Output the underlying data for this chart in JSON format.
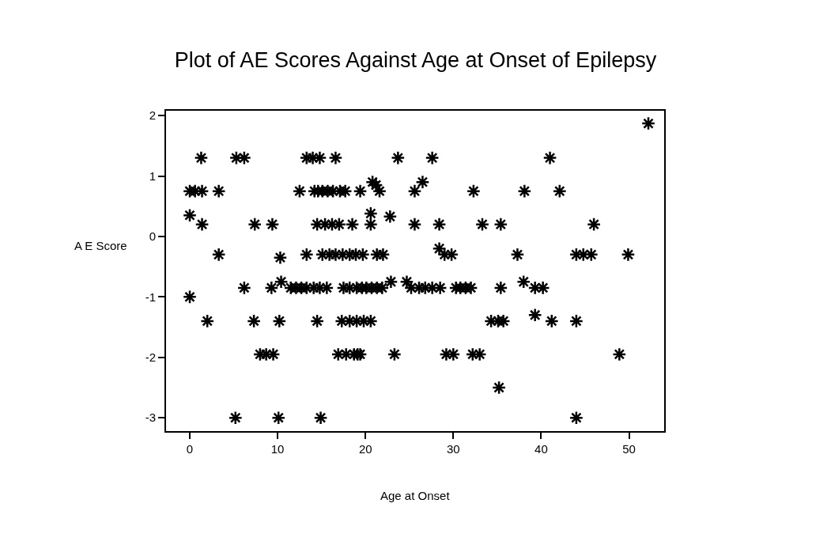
{
  "chart_data": {
    "type": "scatter",
    "title": "Plot of AE Scores Against Age at Onset of Epilepsy",
    "xlabel": "Age at Onset",
    "ylabel": "A E Score",
    "x": [
      1.3,
      5.3,
      6.2,
      13.3,
      14.0,
      14.8,
      16.6,
      23.7,
      27.6,
      41.0,
      52.2,
      20.8,
      26.5,
      21.2,
      0.0,
      0.6,
      1.4,
      3.3,
      12.5,
      14.2,
      14.6,
      15.1,
      15.7,
      16.3,
      17.1,
      17.7,
      19.4,
      21.6,
      25.6,
      32.3,
      38.1,
      42.1,
      0.0,
      20.6,
      22.8,
      1.4,
      7.4,
      9.4,
      14.5,
      15.4,
      16.2,
      17.0,
      18.5,
      20.6,
      25.6,
      28.4,
      33.3,
      35.4,
      46.0,
      28.4,
      3.3,
      13.3,
      15.1,
      15.9,
      16.6,
      17.4,
      18.2,
      18.9,
      19.7,
      21.3,
      22.0,
      29.0,
      29.8,
      37.3,
      44.0,
      44.8,
      45.7,
      49.9,
      10.3,
      10.4,
      22.9,
      24.7,
      38.0,
      6.2,
      9.3,
      11.5,
      12.1,
      12.7,
      13.3,
      14.1,
      14.8,
      15.6,
      17.5,
      18.2,
      19.0,
      19.6,
      20.1,
      20.7,
      21.3,
      21.9,
      25.2,
      26.1,
      26.8,
      27.6,
      28.5,
      30.3,
      30.8,
      31.4,
      32.0,
      35.4,
      39.3,
      40.2,
      0.0,
      39.3,
      2.0,
      7.3,
      10.2,
      14.5,
      17.3,
      18.2,
      19.0,
      19.8,
      20.6,
      34.3,
      35.1,
      35.7,
      41.2,
      44.0,
      8.0,
      8.7,
      9.5,
      16.9,
      17.8,
      18.7,
      19.1,
      19.4,
      23.3,
      29.2,
      30.0,
      32.2,
      33.0,
      48.9,
      35.2,
      5.2,
      10.1,
      14.9,
      44.0
    ],
    "values": [
      1.3,
      1.3,
      1.3,
      1.3,
      1.3,
      1.3,
      1.3,
      1.3,
      1.3,
      1.3,
      1.87,
      0.9,
      0.9,
      0.85,
      0.75,
      0.75,
      0.75,
      0.75,
      0.75,
      0.75,
      0.75,
      0.75,
      0.75,
      0.75,
      0.75,
      0.75,
      0.75,
      0.75,
      0.75,
      0.75,
      0.75,
      0.75,
      0.35,
      0.38,
      0.33,
      0.2,
      0.2,
      0.2,
      0.2,
      0.2,
      0.2,
      0.2,
      0.2,
      0.2,
      0.2,
      0.2,
      0.2,
      0.2,
      0.2,
      -0.2,
      -0.3,
      -0.3,
      -0.3,
      -0.3,
      -0.3,
      -0.3,
      -0.3,
      -0.3,
      -0.3,
      -0.3,
      -0.3,
      -0.3,
      -0.3,
      -0.3,
      -0.3,
      -0.3,
      -0.3,
      -0.3,
      -0.35,
      -0.75,
      -0.75,
      -0.75,
      -0.75,
      -0.85,
      -0.85,
      -0.85,
      -0.85,
      -0.85,
      -0.85,
      -0.85,
      -0.85,
      -0.85,
      -0.85,
      -0.85,
      -0.85,
      -0.85,
      -0.85,
      -0.85,
      -0.85,
      -0.85,
      -0.85,
      -0.85,
      -0.85,
      -0.85,
      -0.85,
      -0.85,
      -0.85,
      -0.85,
      -0.85,
      -0.85,
      -0.85,
      -0.85,
      -1.0,
      -1.3,
      -1.4,
      -1.4,
      -1.4,
      -1.4,
      -1.4,
      -1.4,
      -1.4,
      -1.4,
      -1.4,
      -1.4,
      -1.4,
      -1.4,
      -1.4,
      -1.4,
      -1.95,
      -1.95,
      -1.95,
      -1.95,
      -1.95,
      -1.95,
      -1.95,
      -1.95,
      -1.95,
      -1.95,
      -1.95,
      -1.95,
      -1.95,
      -1.95,
      -2.5,
      -3.0,
      -3.0,
      -3.0,
      -3.0
    ],
    "color": "#000000",
    "marker": "cross",
    "xlim": [
      -2.7,
      54
    ],
    "ylim": [
      -3.22,
      2.08
    ],
    "xticks": [
      0,
      10,
      20,
      30,
      40,
      50
    ],
    "yticks": [
      -3,
      -2,
      -1,
      0,
      1,
      2
    ]
  }
}
